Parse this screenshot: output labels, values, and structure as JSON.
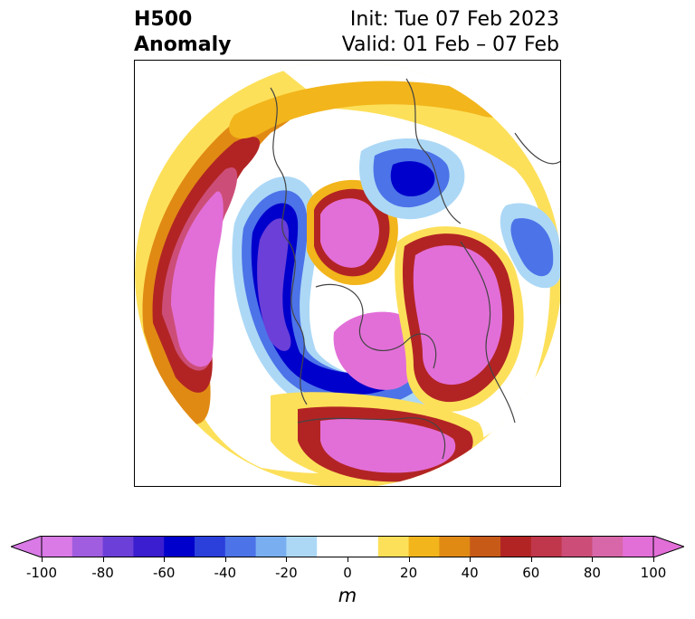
{
  "title": {
    "left": "H500\nAnomaly",
    "right_line1": "Init: Tue 07 Feb 2023",
    "right_line2": "Valid: 01 Feb – 07 Feb"
  },
  "colorbar": {
    "unit": "m",
    "ticks": [
      "-100",
      "-80",
      "-60",
      "-40",
      "-20",
      "0",
      "20",
      "40",
      "60",
      "80",
      "100"
    ],
    "tick_values": [
      -100,
      -80,
      -60,
      -40,
      -20,
      0,
      20,
      40,
      60,
      80,
      100
    ],
    "levels": [
      -100,
      -90,
      -80,
      -70,
      -60,
      -50,
      -40,
      -30,
      -20,
      -10,
      10,
      20,
      30,
      40,
      50,
      60,
      70,
      80,
      90,
      100
    ],
    "colors": [
      "#d97ae6",
      "#a05ddf",
      "#6b3fd8",
      "#3b1ed0",
      "#0000cc",
      "#2b3fdb",
      "#4c73e8",
      "#79aef0",
      "#acd8f6",
      "#ffffff",
      "#fde05a",
      "#f2b51b",
      "#e08a14",
      "#c85a18",
      "#b22424",
      "#c0364a",
      "#cc4e78",
      "#d767a8",
      "#e26fd8"
    ],
    "under_color": "#d97ae6",
    "over_color": "#e26fd8"
  },
  "map": {
    "projection": "north-polar-stereographic",
    "variable": "500 hPa geopotential height anomaly"
  }
}
